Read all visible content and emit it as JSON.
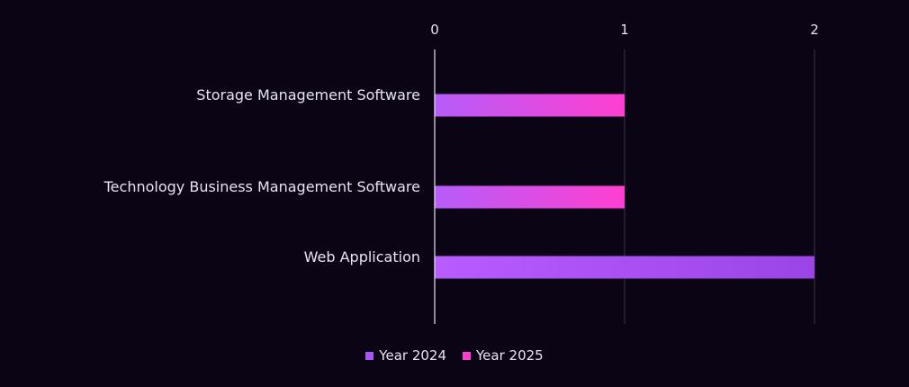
{
  "chart_data": {
    "type": "bar",
    "orientation": "horizontal",
    "stacked": true,
    "categories": [
      "Storage Management Software",
      "Technology Business Management Software",
      "Web Application"
    ],
    "series": [
      {
        "name": "Year 2024",
        "values": [
          0.5,
          0.5,
          2
        ],
        "color": "#a855f7"
      },
      {
        "name": "Year 2025",
        "values": [
          0.5,
          0.5,
          0
        ],
        "color": "#ff3fd0"
      }
    ],
    "xlim": [
      0,
      2
    ],
    "xticks": [
      "0",
      "1",
      "2"
    ],
    "grid": true,
    "legend_position": "bottom"
  }
}
